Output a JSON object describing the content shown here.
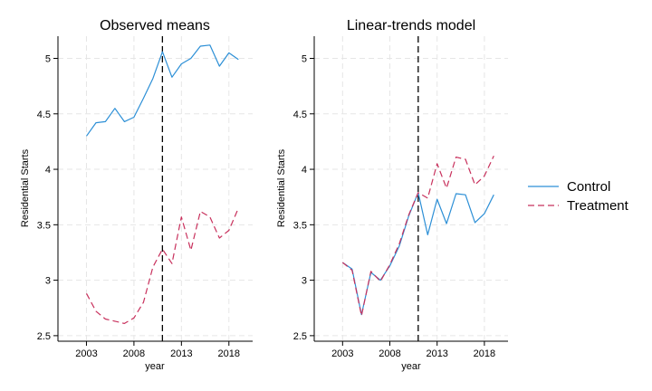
{
  "chart_data": [
    {
      "type": "line",
      "title": "Observed means",
      "xlabel": "year",
      "ylabel": "Residential Starts",
      "xlim": [
        2000,
        2020.5
      ],
      "ylim": [
        2.45,
        5.2
      ],
      "xticks": [
        "2003",
        "2008",
        "2013",
        "2018"
      ],
      "yticks": [
        "2.5",
        "3",
        "3.5",
        "4",
        "4.5",
        "5"
      ],
      "vline": 2011,
      "series": [
        {
          "name": "Control",
          "x": [
            2003,
            2004,
            2005,
            2006,
            2007,
            2008,
            2009,
            2010,
            2011,
            2012,
            2013,
            2014,
            2015,
            2016,
            2017,
            2018,
            2019
          ],
          "values": [
            4.3,
            4.42,
            4.43,
            4.55,
            4.43,
            4.47,
            4.64,
            4.82,
            5.06,
            4.83,
            4.95,
            5.0,
            5.11,
            5.12,
            4.93,
            5.05,
            4.99
          ]
        },
        {
          "name": "Treatment",
          "x": [
            2003,
            2004,
            2005,
            2006,
            2007,
            2008,
            2009,
            2010,
            2011,
            2012,
            2013,
            2014,
            2015,
            2016,
            2017,
            2018,
            2019
          ],
          "values": [
            2.88,
            2.72,
            2.65,
            2.63,
            2.61,
            2.66,
            2.8,
            3.12,
            3.28,
            3.15,
            3.57,
            3.27,
            3.62,
            3.57,
            3.38,
            3.45,
            3.65
          ]
        }
      ]
    },
    {
      "type": "line",
      "title": "Linear-trends model",
      "xlabel": "year",
      "ylabel": "Residential Starts",
      "xlim": [
        2000,
        2020.5
      ],
      "ylim": [
        2.45,
        5.2
      ],
      "xticks": [
        "2003",
        "2008",
        "2013",
        "2018"
      ],
      "yticks": [
        "2.5",
        "3",
        "3.5",
        "4",
        "4.5",
        "5"
      ],
      "vline": 2011,
      "series": [
        {
          "name": "Control",
          "x": [
            2003,
            2004,
            2005,
            2006,
            2007,
            2008,
            2009,
            2010,
            2011,
            2012,
            2013,
            2014,
            2015,
            2016,
            2017,
            2018,
            2019
          ],
          "values": [
            3.16,
            3.1,
            2.69,
            3.07,
            3.0,
            3.13,
            3.31,
            3.58,
            3.79,
            3.41,
            3.73,
            3.51,
            3.78,
            3.77,
            3.52,
            3.6,
            3.77
          ]
        },
        {
          "name": "Treatment",
          "x": [
            2003,
            2004,
            2005,
            2006,
            2007,
            2008,
            2009,
            2010,
            2011,
            2012,
            2013,
            2014,
            2015,
            2016,
            2017,
            2018,
            2019
          ],
          "values": [
            3.16,
            3.09,
            2.68,
            3.08,
            2.99,
            3.14,
            3.33,
            3.59,
            3.79,
            3.74,
            4.05,
            3.83,
            4.11,
            4.09,
            3.86,
            3.94,
            4.12
          ]
        }
      ]
    }
  ],
  "legend": {
    "items": [
      {
        "label": "Control",
        "color": "#2c8fd6",
        "dash": "solid"
      },
      {
        "label": "Treatment",
        "color": "#c8305c",
        "dash": "dashed"
      }
    ]
  }
}
